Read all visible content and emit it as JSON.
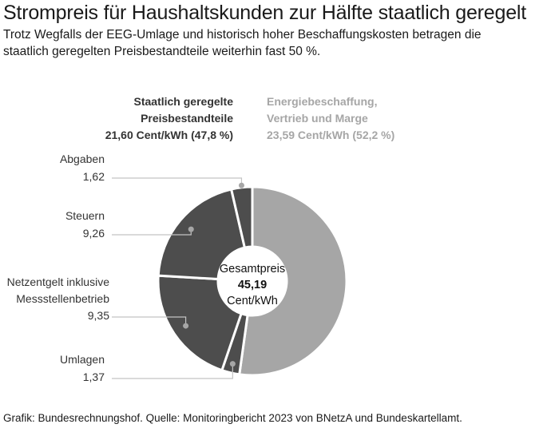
{
  "title": "Strompreis für Haushaltskunden zur Hälfte staatlich geregelt",
  "subtitle_lines": [
    "Trotz Wegfalls der EEG-Umlage und historisch hoher Beschaffungskosten betragen die",
    "staatlich geregelten Preisbestandteile weiterhin fast 50 %."
  ],
  "footer": "Grafik: Bundesrechnungshof. Quelle: Monitoringbericht 2023 von BNetzA und Bundeskartellamt.",
  "chart_data": {
    "type": "pie",
    "subtype": "donut",
    "unit": "Cent/kWh",
    "center_label": {
      "line1": "Gesamtpreis",
      "value": "45,19",
      "line3": "Cent/kWh"
    },
    "groups": [
      {
        "lines": [
          "Staatlich geregelte",
          "Preisbestandteile",
          "21,60 Cent/kWh (47,8 %)"
        ],
        "color": "#4d4d4d"
      },
      {
        "lines": [
          "Energiebeschaffung,",
          "Vertrieb und Marge",
          "23,59 Cent/kWh (52,2 %)"
        ],
        "color": "#a6a6a6"
      }
    ],
    "slices": [
      {
        "name": "Energiebeschaffung, Vertrieb und Marge",
        "value": 23.59,
        "color": "#a6a6a6",
        "label_lines": []
      },
      {
        "name": "Umlagen",
        "value": 1.37,
        "color": "#4d4d4d",
        "label_lines": [
          "Umlagen",
          "1,37"
        ]
      },
      {
        "name": "Netzentgelt inklusive Messstellenbetrieb",
        "value": 9.35,
        "color": "#4d4d4d",
        "label_lines": [
          "Netzentgelt inklusive",
          "Messstellenbetrieb",
          "9,35"
        ]
      },
      {
        "name": "Steuern",
        "value": 9.26,
        "color": "#4d4d4d",
        "label_lines": [
          "Steuern",
          "9,26"
        ]
      },
      {
        "name": "Abgaben",
        "value": 1.62,
        "color": "#4d4d4d",
        "label_lines": [
          "Abgaben",
          "1,62"
        ]
      }
    ]
  }
}
